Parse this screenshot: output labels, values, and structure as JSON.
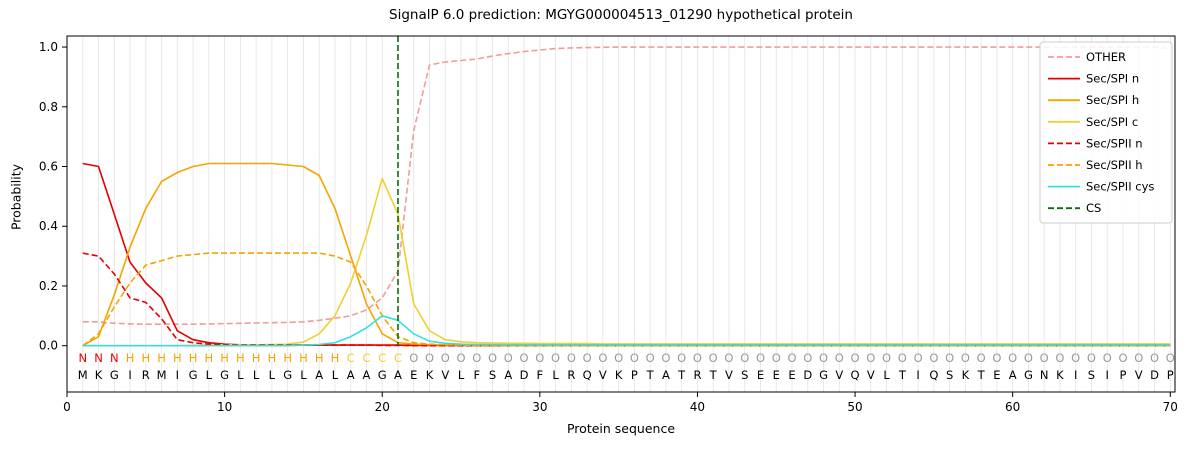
{
  "chart_data": {
    "type": "line",
    "title": "SignalP 6.0 prediction: MGYG000004513_01290 hypothetical protein",
    "xlabel": "Protein sequence",
    "ylabel": "Probability",
    "legend_position": "upper right",
    "grid": "vertical-only",
    "grid_color": "#e3e3e3",
    "n_positions": 70,
    "xlim": [
      0,
      70.3
    ],
    "ylim_draw": [
      -0.155,
      1.037
    ],
    "x_ticks": [
      0,
      10,
      20,
      30,
      40,
      50,
      60,
      70
    ],
    "y_ticks": [
      "0.0",
      "0.2",
      "0.4",
      "0.6",
      "0.8",
      "1.0"
    ],
    "series": [
      {
        "name": "OTHER",
        "color": "#f59a9a",
        "dash": true,
        "values": [
          0.08,
          0.08,
          0.075,
          0.073,
          0.072,
          0.072,
          0.072,
          0.072,
          0.073,
          0.074,
          0.075,
          0.076,
          0.077,
          0.078,
          0.08,
          0.085,
          0.092,
          0.1,
          0.12,
          0.16,
          0.25,
          0.72,
          0.94,
          0.95,
          0.955,
          0.96,
          0.97,
          0.978,
          0.985,
          0.99,
          0.995,
          0.997,
          0.998,
          0.999,
          1.0,
          1.0,
          1.0,
          1.0,
          1.0,
          1.0,
          1.0,
          1.0,
          1.0,
          1.0,
          1.0,
          1.0,
          1.0,
          1.0,
          1.0,
          1.0,
          1.0,
          1.0,
          1.0,
          1.0,
          1.0,
          1.0,
          1.0,
          1.0,
          1.0,
          1.0,
          1.0,
          1.0,
          1.0,
          1.0,
          1.0,
          1.0,
          1.0,
          1.0,
          1.0,
          0.995
        ]
      },
      {
        "name": "Sec/SPI n",
        "color": "#e50000",
        "dash": false,
        "values": [
          0.61,
          0.6,
          0.44,
          0.28,
          0.21,
          0.16,
          0.05,
          0.02,
          0.01,
          0.005,
          0.003,
          0.002,
          0.002,
          0.002,
          0.002,
          0.002,
          0.002,
          0.002,
          0.002,
          0.002,
          0.002,
          0.001,
          0.001,
          0.001,
          0.001,
          0.001,
          0.0,
          0.0,
          0.0,
          0.0,
          0.0,
          0.0,
          0.0,
          0.0,
          0.0,
          0.0,
          0.0,
          0.0,
          0.0,
          0.0,
          0.0,
          0.0,
          0.0,
          0.0,
          0.0,
          0.0,
          0.0,
          0.0,
          0.0,
          0.0,
          0.0,
          0.0,
          0.0,
          0.0,
          0.0,
          0.0,
          0.0,
          0.0,
          0.0,
          0.0,
          0.0,
          0.0,
          0.0,
          0.0,
          0.0,
          0.0,
          0.0,
          0.0,
          0.0,
          0.0
        ]
      },
      {
        "name": "Sec/SPI h",
        "color": "#f5a300",
        "dash": false,
        "values": [
          0.0,
          0.03,
          0.17,
          0.33,
          0.46,
          0.55,
          0.58,
          0.6,
          0.61,
          0.61,
          0.61,
          0.61,
          0.61,
          0.605,
          0.6,
          0.57,
          0.46,
          0.3,
          0.14,
          0.04,
          0.01,
          0.005,
          0.003,
          0.002,
          0.002,
          0.001,
          0.001,
          0.001,
          0.001,
          0.001,
          0.0,
          0.0,
          0.0,
          0.0,
          0.0,
          0.0,
          0.0,
          0.0,
          0.0,
          0.0,
          0.0,
          0.0,
          0.0,
          0.0,
          0.0,
          0.0,
          0.0,
          0.0,
          0.0,
          0.0,
          0.0,
          0.0,
          0.0,
          0.0,
          0.0,
          0.0,
          0.0,
          0.0,
          0.0,
          0.0,
          0.0,
          0.0,
          0.0,
          0.0,
          0.0,
          0.0,
          0.0,
          0.0,
          0.0,
          0.0
        ]
      },
      {
        "name": "Sec/SPI c",
        "color": "#f0d030",
        "dash": false,
        "values": [
          0.0,
          0.0,
          0.0,
          0.0,
          0.0,
          0.0,
          0.0,
          0.001,
          0.002,
          0.003,
          0.003,
          0.003,
          0.004,
          0.005,
          0.012,
          0.04,
          0.1,
          0.21,
          0.37,
          0.56,
          0.44,
          0.14,
          0.05,
          0.02,
          0.013,
          0.01,
          0.009,
          0.008,
          0.008,
          0.007,
          0.007,
          0.007,
          0.007,
          0.006,
          0.006,
          0.006,
          0.006,
          0.006,
          0.006,
          0.006,
          0.006,
          0.006,
          0.006,
          0.006,
          0.006,
          0.006,
          0.006,
          0.006,
          0.006,
          0.006,
          0.006,
          0.006,
          0.006,
          0.006,
          0.006,
          0.006,
          0.006,
          0.006,
          0.006,
          0.006,
          0.006,
          0.006,
          0.006,
          0.006,
          0.006,
          0.006,
          0.006,
          0.006,
          0.006,
          0.006
        ]
      },
      {
        "name": "Sec/SPII n",
        "color": "#e50000",
        "dash": true,
        "values": [
          0.31,
          0.3,
          0.24,
          0.16,
          0.145,
          0.09,
          0.02,
          0.01,
          0.005,
          0.003,
          0.002,
          0.002,
          0.002,
          0.002,
          0.002,
          0.002,
          0.002,
          0.002,
          0.002,
          0.001,
          0.001,
          0.0,
          0.0,
          0.0,
          0.0,
          0.0,
          0.0,
          0.0,
          0.0,
          0.0,
          0.0,
          0.0,
          0.0,
          0.0,
          0.0,
          0.0,
          0.0,
          0.0,
          0.0,
          0.0,
          0.0,
          0.0,
          0.0,
          0.0,
          0.0,
          0.0,
          0.0,
          0.0,
          0.0,
          0.0,
          0.0,
          0.0,
          0.0,
          0.0,
          0.0,
          0.0,
          0.0,
          0.0,
          0.0,
          0.0,
          0.0,
          0.0,
          0.0,
          0.0,
          0.0,
          0.0,
          0.0,
          0.0,
          0.0,
          0.0
        ]
      },
      {
        "name": "Sec/SPII h",
        "color": "#f5a300",
        "dash": true,
        "values": [
          0.0,
          0.04,
          0.13,
          0.21,
          0.27,
          0.285,
          0.3,
          0.305,
          0.31,
          0.31,
          0.31,
          0.31,
          0.31,
          0.31,
          0.31,
          0.31,
          0.3,
          0.28,
          0.2,
          0.1,
          0.03,
          0.01,
          0.005,
          0.003,
          0.002,
          0.001,
          0.001,
          0.0,
          0.0,
          0.0,
          0.0,
          0.0,
          0.0,
          0.0,
          0.0,
          0.0,
          0.0,
          0.0,
          0.0,
          0.0,
          0.0,
          0.0,
          0.0,
          0.0,
          0.0,
          0.0,
          0.0,
          0.0,
          0.0,
          0.0,
          0.0,
          0.0,
          0.0,
          0.0,
          0.0,
          0.0,
          0.0,
          0.0,
          0.0,
          0.0,
          0.0,
          0.0,
          0.0,
          0.0,
          0.0,
          0.0,
          0.0,
          0.0,
          0.0,
          0.0
        ]
      },
      {
        "name": "Sec/SPII cys",
        "color": "#35dfe0",
        "dash": false,
        "values": [
          0.0,
          0.0,
          0.0,
          0.0,
          0.0,
          0.0,
          0.0,
          0.0,
          0.0,
          0.0,
          0.0,
          0.0,
          0.0,
          0.0,
          0.002,
          0.004,
          0.01,
          0.03,
          0.06,
          0.1,
          0.085,
          0.04,
          0.015,
          0.008,
          0.005,
          0.004,
          0.004,
          0.003,
          0.003,
          0.003,
          0.003,
          0.003,
          0.003,
          0.003,
          0.003,
          0.003,
          0.003,
          0.003,
          0.003,
          0.003,
          0.003,
          0.003,
          0.003,
          0.003,
          0.003,
          0.003,
          0.003,
          0.003,
          0.003,
          0.003,
          0.003,
          0.003,
          0.003,
          0.003,
          0.003,
          0.003,
          0.003,
          0.003,
          0.003,
          0.003,
          0.003,
          0.003,
          0.003,
          0.003,
          0.003,
          0.003,
          0.003,
          0.003,
          0.003,
          0.003
        ]
      }
    ],
    "cs": {
      "label": "CS",
      "position": 21,
      "color": "#0a6e0a"
    },
    "sequence": "MKGIRMIGLGLLLGLALAAGAEKVLFSADFLRQVKPTATRTVSEEEDGVQVLTIQSKTEAGNKISIPVDP",
    "region_labels": "NNNHHHHHHHHHHHHHHCCCCOOOOOOOOOOOOOOOOOOOOOOOOOOOOOOOOOOOOOOOOOOOOOOOOO",
    "region_colors": {
      "N": "#e50000",
      "H": "#f5a300",
      "C": "#f0d030",
      "O": "#999999"
    },
    "sequence_color": "#000000"
  }
}
